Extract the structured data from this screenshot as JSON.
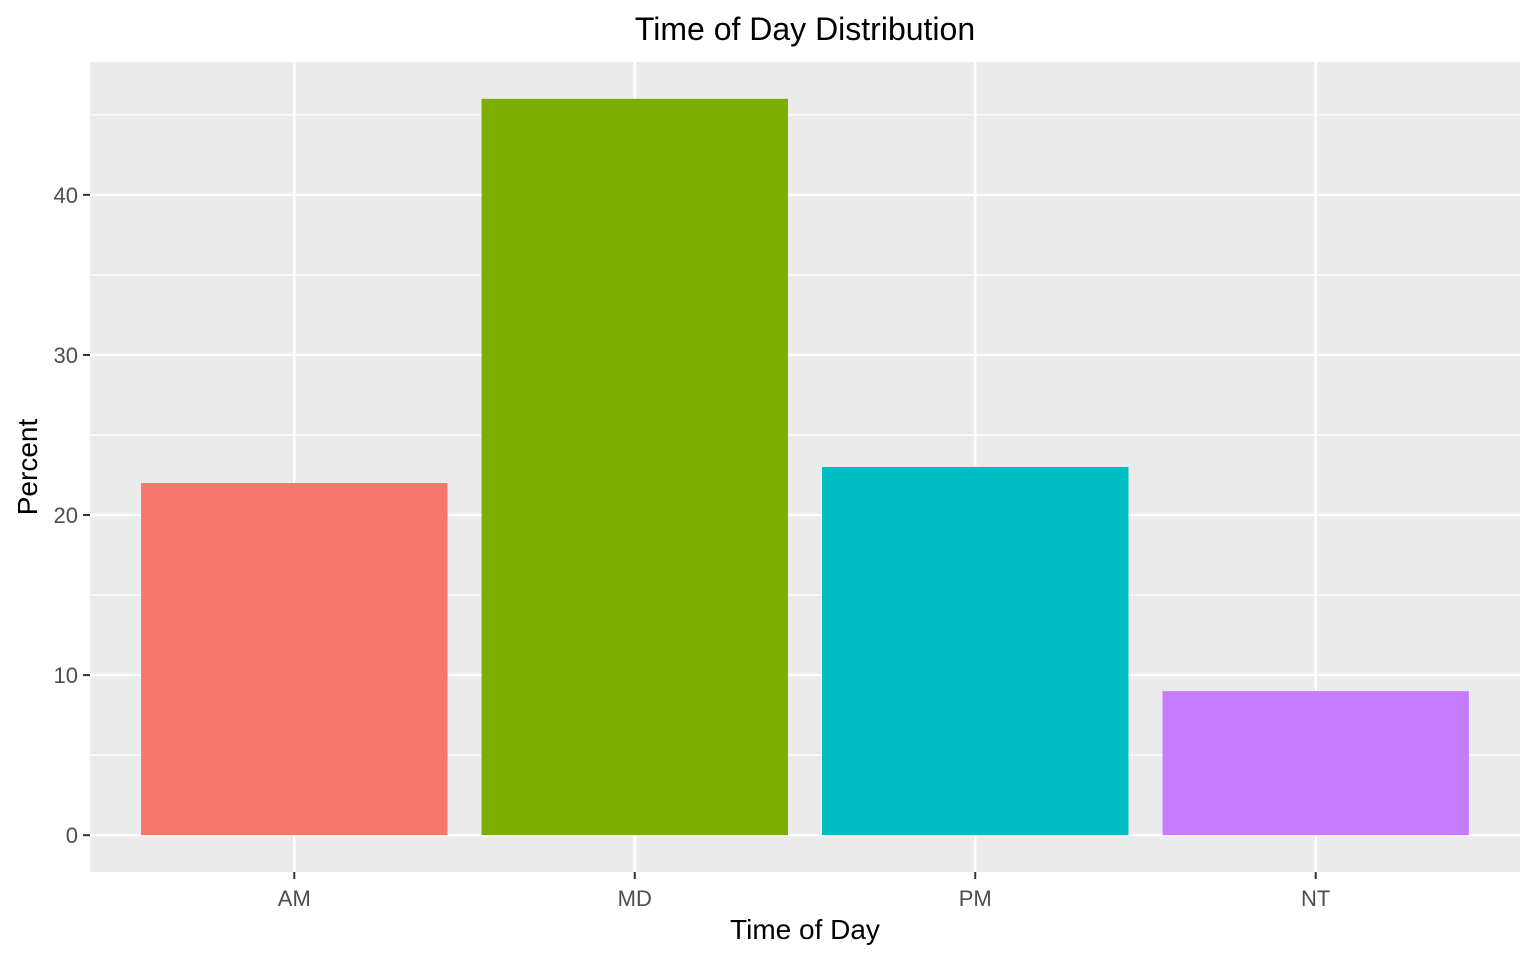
{
  "chart_data": {
    "type": "bar",
    "title": "Time of Day Distribution",
    "xlabel": "Time of Day",
    "ylabel": "Percent",
    "categories": [
      "AM",
      "MD",
      "PM",
      "NT"
    ],
    "values": [
      22,
      46,
      23,
      9
    ],
    "ylim": [
      -2.3,
      48.3
    ],
    "yticks": [
      0,
      10,
      20,
      30,
      40
    ],
    "colors": [
      "#F8766D",
      "#7CAE00",
      "#00BFC4",
      "#C77CFF"
    ],
    "panel_background": "#EBEBEB",
    "grid": true,
    "legend": "none"
  }
}
